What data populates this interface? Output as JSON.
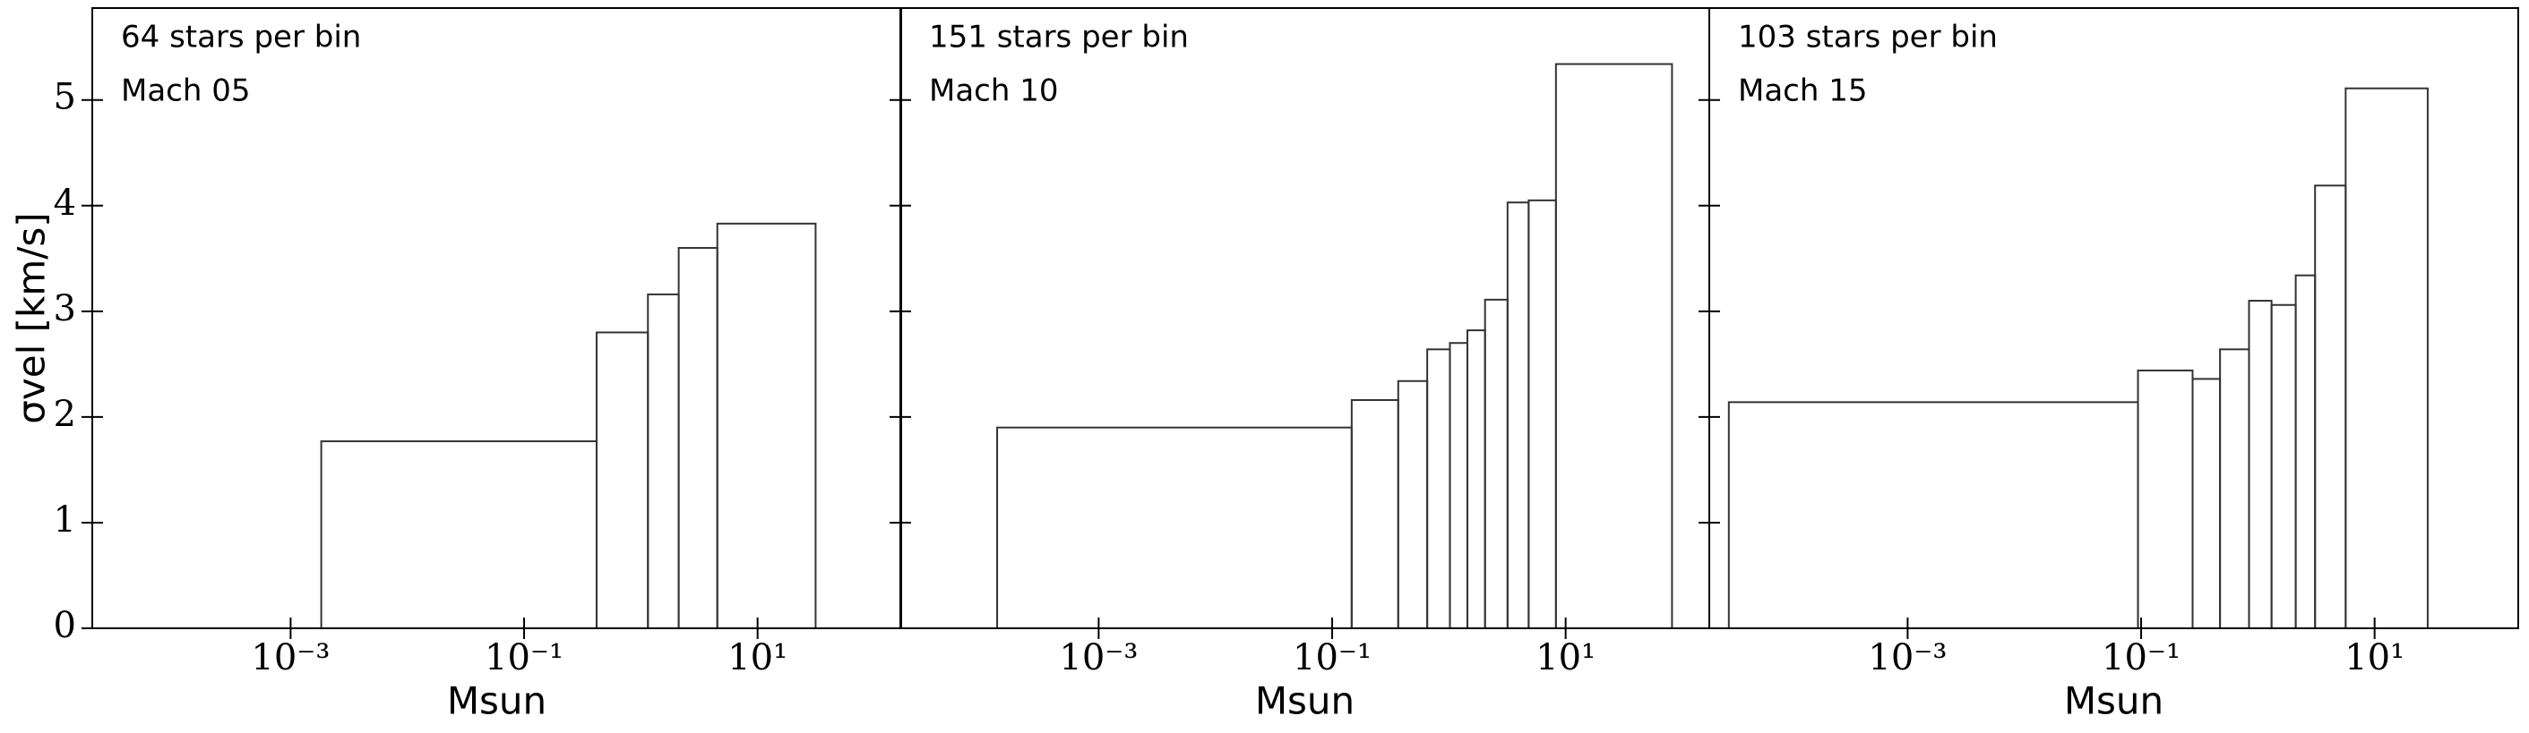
{
  "chart_data": [
    {
      "type": "histogram",
      "annotations": [
        "64 stars per bin",
        "Mach 05"
      ],
      "xlabel": "Msun",
      "ylabel": "σvel [km/s]",
      "bins": [
        0.00183,
        0.418,
        1.15,
        2.11,
        4.52,
        31.4
      ],
      "values": [
        1.77,
        2.8,
        3.16,
        3.6,
        3.83
      ],
      "color": "#333333",
      "xscale": "log",
      "xlim": [
        2e-05,
        170
      ],
      "ylim": [
        0,
        5.87
      ],
      "xticks": [
        {
          "value": 0.001,
          "label": "10⁻³"
        },
        {
          "value": 0.1,
          "label": "10⁻¹"
        },
        {
          "value": 10,
          "label": "10¹"
        }
      ],
      "yticks": [
        0,
        1,
        2,
        3,
        4,
        5
      ]
    },
    {
      "type": "histogram",
      "annotations": [
        "151 stars per bin",
        "Mach 10"
      ],
      "xlabel": "Msun",
      "bins": [
        0.000135,
        0.147,
        0.368,
        0.652,
        1.02,
        1.44,
        2.04,
        3.18,
        4.82,
        8.26,
        81.5
      ],
      "values": [
        1.9,
        2.16,
        2.34,
        2.64,
        2.7,
        2.82,
        3.11,
        4.03,
        4.05,
        5.34
      ],
      "color": "#333333",
      "xscale": "log",
      "xlim": [
        2e-05,
        170
      ],
      "ylim": [
        0,
        5.87
      ],
      "xticks": [
        {
          "value": 0.001,
          "label": "10⁻³"
        },
        {
          "value": 0.1,
          "label": "10⁻¹"
        },
        {
          "value": 10,
          "label": "10¹"
        }
      ],
      "yticks": [
        0,
        1,
        2,
        3,
        4,
        5
      ]
    },
    {
      "type": "histogram",
      "annotations": [
        "103 stars per bin",
        "Mach 15"
      ],
      "xlabel": "Msun",
      "bins": [
        2.94e-05,
        0.094,
        0.276,
        0.474,
        0.84,
        1.31,
        2.11,
        3.09,
        5.65,
        28.5
      ],
      "values": [
        2.14,
        2.44,
        2.36,
        2.64,
        3.1,
        3.06,
        3.34,
        4.19,
        5.11
      ],
      "color": "#333333",
      "xscale": "log",
      "xlim": [
        2e-05,
        170
      ],
      "ylim": [
        0,
        5.87
      ],
      "xticks": [
        {
          "value": 0.001,
          "label": "10⁻³"
        },
        {
          "value": 0.1,
          "label": "10⁻¹"
        },
        {
          "value": 10,
          "label": "10¹"
        }
      ],
      "yticks": [
        0,
        1,
        2,
        3,
        4,
        5
      ]
    }
  ]
}
